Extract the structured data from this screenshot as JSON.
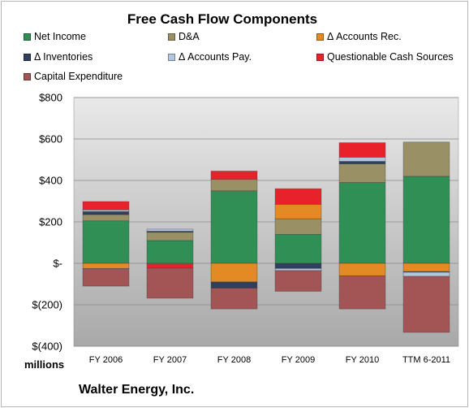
{
  "chart_data": {
    "type": "bar",
    "stacked": true,
    "title": "Free Cash Flow Components",
    "categories": [
      "FY 2006",
      "FY 2007",
      "FY 2008",
      "FY 2009",
      "FY 2010",
      "TTM 6-2011"
    ],
    "y_ticks": [
      "$800",
      "$600",
      "$400",
      "$200",
      "$-",
      "$(200)",
      "$(400)"
    ],
    "ylim": [
      -400,
      800
    ],
    "ylabel": "millions",
    "legend_position": "top",
    "grid": true,
    "series": [
      {
        "name": "Net Income",
        "color": "#2f8f55",
        "values": [
          205,
          110,
          350,
          140,
          390,
          420
        ]
      },
      {
        "name": "D&A",
        "color": "#9a9065",
        "values": [
          30,
          40,
          55,
          75,
          90,
          165
        ]
      },
      {
        "name": "Δ Accounts Rec.",
        "color": "#e48a25",
        "values": [
          -25,
          -3,
          -90,
          70,
          -60,
          -40
        ]
      },
      {
        "name": "Δ Inventories",
        "color": "#2f3f5c",
        "values": [
          15,
          5,
          -30,
          -25,
          12,
          -3
        ]
      },
      {
        "name": "Δ Accounts Pay.",
        "color": "#b3c6dd",
        "values": [
          8,
          10,
          0,
          -10,
          20,
          -20
        ]
      },
      {
        "name": "Questionable Cash Sources",
        "color": "#e8212b",
        "values": [
          40,
          -20,
          40,
          75,
          70,
          0
        ]
      },
      {
        "name": "Capital Expenditure",
        "color": "#a35454",
        "values": [
          -85,
          -145,
          -100,
          -100,
          -160,
          -270
        ]
      }
    ],
    "company": "Walter Energy, Inc."
  }
}
